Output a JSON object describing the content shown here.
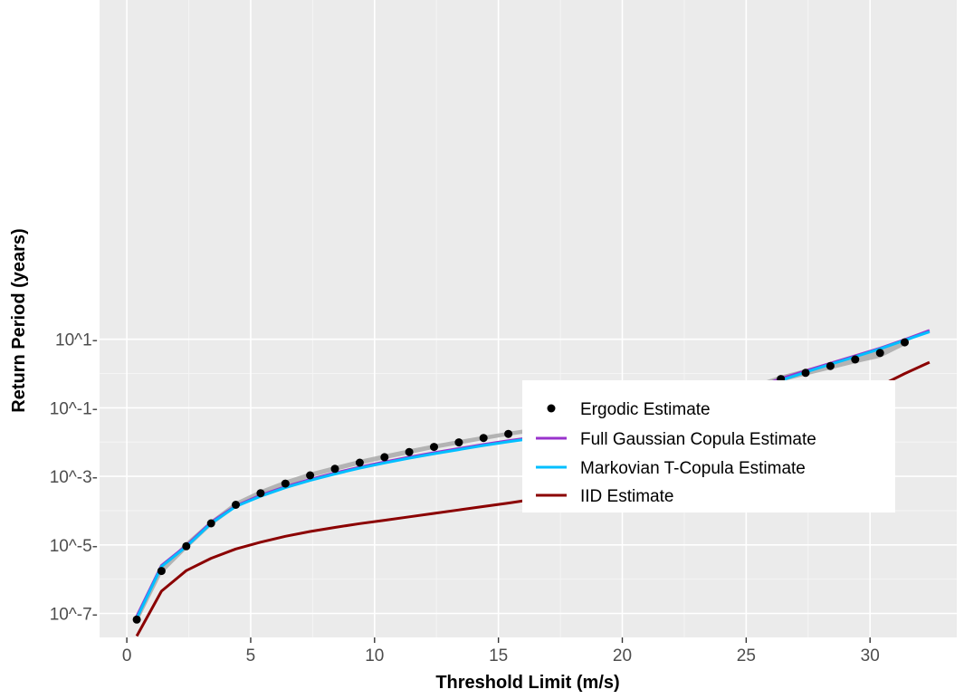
{
  "chart_data": {
    "type": "line",
    "xlabel": "Threshold Limit (m/s)",
    "ylabel": "Return Period (years)",
    "xlim": [
      -1.1,
      33.5
    ],
    "xticks": [
      0,
      5,
      10,
      15,
      20,
      25,
      30
    ],
    "xtick_labels": [
      "0",
      "5",
      "10",
      "15",
      "20",
      "25",
      "30"
    ],
    "y_scale": "log10",
    "ylim_log10": [
      -7.7,
      10.9
    ],
    "yticks_log10": [
      1,
      -1,
      -3,
      -5,
      -7
    ],
    "ytick_labels": [
      "10^1-",
      "10^-1-",
      "10^-3-",
      "10^-5-",
      "10^-7-"
    ],
    "grid": true,
    "legend_position": "center-right",
    "ergodic": {
      "name": "Ergodic Estimate",
      "x": [
        0.4,
        1.4,
        2.4,
        3.4,
        4.4,
        5.4,
        6.4,
        7.4,
        8.4,
        9.4,
        10.4,
        11.4,
        12.4,
        13.4,
        14.4,
        15.4,
        16.4,
        17.4,
        18.4,
        19.4,
        20.4,
        21.4,
        22.4,
        23.4,
        24.4,
        25.4,
        26.4,
        27.4,
        28.4,
        29.4,
        30.4,
        31.4
      ],
      "y_log10": [
        -7.18,
        -5.76,
        -5.04,
        -4.37,
        -3.83,
        -3.49,
        -3.21,
        -2.97,
        -2.78,
        -2.6,
        -2.44,
        -2.29,
        -2.14,
        -2.01,
        -1.88,
        -1.76,
        -1.65,
        -1.55,
        -1.44,
        -1.33,
        -1.22,
        -1.11,
        -0.97,
        -0.81,
        -0.61,
        -0.38,
        -0.16,
        0.02,
        0.22,
        0.41,
        0.6,
        0.91
      ]
    },
    "band": {
      "x": [
        0.4,
        1.4,
        2.4,
        3.4,
        4.4,
        5.4,
        6.4,
        7.4,
        8.4,
        9.4,
        10.4,
        11.4,
        12.4,
        13.4,
        14.4,
        15.4,
        16.4,
        17.4,
        18.4,
        19.4,
        20.4,
        21.4,
        22.4,
        23.4,
        24.4,
        25.4,
        26.4,
        27.4,
        28.4,
        29.4,
        30.4,
        31.4
      ],
      "upper_log10": [
        -7.04,
        -5.66,
        -4.92,
        -4.28,
        -3.74,
        -3.4,
        -3.12,
        -2.89,
        -2.7,
        -2.52,
        -2.36,
        -2.21,
        -2.07,
        -1.94,
        -1.82,
        -1.7,
        -1.59,
        -1.49,
        -1.38,
        -1.27,
        -1.16,
        -1.05,
        -0.92,
        -0.76,
        -0.55,
        -0.3,
        -0.06,
        0.13,
        0.33,
        0.53,
        0.74,
        1.0
      ],
      "lower_log10": [
        -7.3,
        -5.85,
        -5.13,
        -4.45,
        -3.91,
        -3.56,
        -3.28,
        -3.03,
        -2.84,
        -2.66,
        -2.5,
        -2.35,
        -2.2,
        -2.07,
        -1.94,
        -1.82,
        -1.71,
        -1.6,
        -1.49,
        -1.38,
        -1.27,
        -1.16,
        -1.02,
        -0.86,
        -0.67,
        -0.45,
        -0.24,
        -0.06,
        0.12,
        0.3,
        0.46,
        0.82
      ]
    },
    "series": [
      {
        "name": "Full Gaussian Copula Estimate",
        "color": "#9933CC",
        "x": [
          0.4,
          1.4,
          2.4,
          3.4,
          4.4,
          5.4,
          6.4,
          7.4,
          8.4,
          9.4,
          10.4,
          11.4,
          12.4,
          13.4,
          14.4,
          15.4,
          16.4,
          17.4,
          18.4,
          19.4,
          20.4,
          21.4,
          22.4,
          23.4,
          24.4,
          25.4,
          26.4,
          27.4,
          28.4,
          29.4,
          30.4,
          31.4,
          32.4
        ],
        "y_log10": [
          -7.08,
          -5.6,
          -5.02,
          -4.34,
          -3.86,
          -3.55,
          -3.3,
          -3.09,
          -2.9,
          -2.73,
          -2.58,
          -2.44,
          -2.31,
          -2.19,
          -2.07,
          -1.96,
          -1.86,
          -1.76,
          -1.66,
          -1.56,
          -1.45,
          -1.33,
          -1.18,
          -0.97,
          -0.69,
          -0.4,
          -0.15,
          0.08,
          0.3,
          0.52,
          0.74,
          0.99,
          1.26
        ]
      },
      {
        "name": "Markovian T-Copula Estimate",
        "color": "#00BFFF",
        "x": [
          0.4,
          1.4,
          2.4,
          3.4,
          4.4,
          5.4,
          6.4,
          7.4,
          8.4,
          9.4,
          10.4,
          11.4,
          12.4,
          13.4,
          14.4,
          15.4,
          16.4,
          17.4,
          18.4,
          19.4,
          20.4,
          21.4,
          22.4,
          23.4,
          24.4,
          25.4,
          26.4,
          27.4,
          28.4,
          29.4,
          30.4,
          31.4,
          32.4
        ],
        "y_log10": [
          -7.14,
          -5.63,
          -5.05,
          -4.37,
          -3.88,
          -3.58,
          -3.33,
          -3.12,
          -2.93,
          -2.76,
          -2.61,
          -2.47,
          -2.34,
          -2.22,
          -2.1,
          -1.99,
          -1.89,
          -1.79,
          -1.69,
          -1.59,
          -1.48,
          -1.36,
          -1.22,
          -1.01,
          -0.73,
          -0.45,
          -0.2,
          0.04,
          0.27,
          0.49,
          0.72,
          0.97,
          1.22
        ]
      },
      {
        "name": "IID Estimate",
        "color": "#8B0000",
        "x": [
          0.4,
          1.4,
          2.4,
          3.4,
          4.4,
          5.4,
          6.4,
          7.4,
          8.4,
          9.4,
          10.4,
          11.4,
          12.4,
          13.4,
          14.4,
          15.4,
          16.4,
          17.4,
          18.4,
          19.4,
          20.4,
          21.4,
          22.4,
          23.4,
          24.4,
          25.4,
          26.4,
          27.4,
          28.4,
          29.4,
          30.4,
          31.4,
          32.4
        ],
        "y_log10": [
          -7.66,
          -6.35,
          -5.75,
          -5.39,
          -5.12,
          -4.92,
          -4.75,
          -4.61,
          -4.49,
          -4.38,
          -4.28,
          -4.18,
          -4.08,
          -3.98,
          -3.88,
          -3.78,
          -3.67,
          -3.56,
          -3.44,
          -3.32,
          -3.19,
          -3.05,
          -2.9,
          -2.74,
          -2.56,
          -2.36,
          -2.12,
          -1.78,
          -1.26,
          -0.76,
          -0.36,
          0.0,
          0.33
        ]
      }
    ]
  }
}
